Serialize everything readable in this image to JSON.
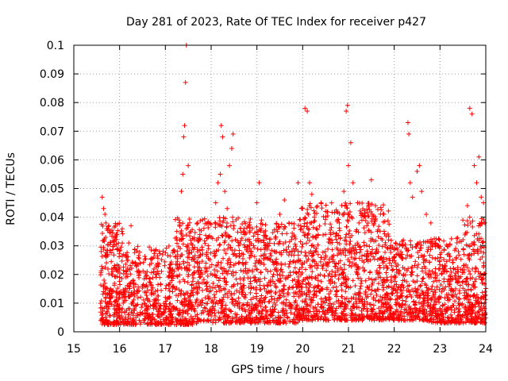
{
  "chart_data": {
    "type": "scatter",
    "title": "Day 281 of 2023, Rate Of TEC Index for receiver p427",
    "xlabel": "GPS time / hours",
    "ylabel": "ROTI / TECUs",
    "xlim": [
      15,
      24
    ],
    "ylim": [
      0,
      0.1
    ],
    "xticks": [
      "15",
      "16",
      "17",
      "18",
      "19",
      "20",
      "21",
      "22",
      "23",
      "24"
    ],
    "yticks": [
      "0",
      "0.01",
      "0.02",
      "0.03",
      "0.04",
      "0.05",
      "0.06",
      "0.07",
      "0.08",
      "0.09",
      "0.1"
    ],
    "grid": true,
    "marker": "plus",
    "color": "#ff0000",
    "series": [
      {
        "points": [
          [
            15.62,
            0.047
          ],
          [
            15.65,
            0.043
          ],
          [
            15.68,
            0.041
          ],
          [
            15.7,
            0.038
          ],
          [
            15.72,
            0.036
          ],
          [
            15.6,
            0.028
          ],
          [
            15.63,
            0.022
          ],
          [
            15.66,
            0.018
          ],
          [
            15.7,
            0.012
          ],
          [
            15.75,
            0.008
          ],
          [
            15.8,
            0.015
          ],
          [
            15.85,
            0.021
          ],
          [
            15.9,
            0.033
          ],
          [
            15.95,
            0.029
          ],
          [
            16.0,
            0.019
          ],
          [
            16.05,
            0.035
          ],
          [
            16.1,
            0.012
          ],
          [
            16.15,
            0.026
          ],
          [
            16.2,
            0.031
          ],
          [
            16.25,
            0.037
          ],
          [
            16.3,
            0.018
          ],
          [
            16.35,
            0.009
          ],
          [
            16.45,
            0.024
          ],
          [
            16.5,
            0.016
          ],
          [
            16.6,
            0.021
          ],
          [
            16.7,
            0.013
          ],
          [
            16.8,
            0.019
          ],
          [
            16.9,
            0.009
          ],
          [
            17.0,
            0.012
          ],
          [
            17.1,
            0.017
          ],
          [
            17.2,
            0.028
          ],
          [
            17.25,
            0.035
          ],
          [
            17.3,
            0.039
          ],
          [
            17.35,
            0.049
          ],
          [
            17.38,
            0.055
          ],
          [
            17.4,
            0.068
          ],
          [
            17.42,
            0.072
          ],
          [
            17.44,
            0.087
          ],
          [
            17.46,
            0.1
          ],
          [
            17.5,
            0.058
          ],
          [
            17.55,
            0.035
          ],
          [
            17.6,
            0.026
          ],
          [
            17.7,
            0.038
          ],
          [
            17.75,
            0.019
          ],
          [
            17.8,
            0.011
          ],
          [
            17.9,
            0.027
          ],
          [
            18.0,
            0.033
          ],
          [
            18.1,
            0.045
          ],
          [
            18.15,
            0.052
          ],
          [
            18.2,
            0.055
          ],
          [
            18.22,
            0.072
          ],
          [
            18.25,
            0.068
          ],
          [
            18.3,
            0.049
          ],
          [
            18.35,
            0.043
          ],
          [
            18.4,
            0.058
          ],
          [
            18.45,
            0.064
          ],
          [
            18.48,
            0.069
          ],
          [
            18.5,
            0.037
          ],
          [
            18.6,
            0.024
          ],
          [
            18.7,
            0.016
          ],
          [
            18.8,
            0.028
          ],
          [
            18.9,
            0.036
          ],
          [
            19.0,
            0.045
          ],
          [
            19.05,
            0.052
          ],
          [
            19.1,
            0.039
          ],
          [
            19.2,
            0.026
          ],
          [
            19.3,
            0.018
          ],
          [
            19.4,
            0.033
          ],
          [
            19.5,
            0.041
          ],
          [
            19.6,
            0.046
          ],
          [
            19.7,
            0.038
          ],
          [
            19.8,
            0.029
          ],
          [
            19.9,
            0.052
          ],
          [
            20.0,
            0.043
          ],
          [
            20.05,
            0.078
          ],
          [
            20.1,
            0.077
          ],
          [
            20.15,
            0.052
          ],
          [
            20.2,
            0.048
          ],
          [
            20.3,
            0.036
          ],
          [
            20.4,
            0.045
          ],
          [
            20.5,
            0.042
          ],
          [
            20.6,
            0.031
          ],
          [
            20.7,
            0.024
          ],
          [
            20.8,
            0.038
          ],
          [
            20.9,
            0.049
          ],
          [
            20.95,
            0.077
          ],
          [
            20.98,
            0.079
          ],
          [
            21.0,
            0.058
          ],
          [
            21.05,
            0.066
          ],
          [
            21.1,
            0.052
          ],
          [
            21.2,
            0.045
          ],
          [
            21.3,
            0.041
          ],
          [
            21.4,
            0.037
          ],
          [
            21.5,
            0.053
          ],
          [
            21.6,
            0.028
          ],
          [
            21.7,
            0.019
          ],
          [
            21.8,
            0.012
          ],
          [
            21.9,
            0.024
          ],
          [
            22.0,
            0.016
          ],
          [
            22.1,
            0.021
          ],
          [
            22.2,
            0.032
          ],
          [
            22.3,
            0.073
          ],
          [
            22.32,
            0.069
          ],
          [
            22.35,
            0.052
          ],
          [
            22.4,
            0.047
          ],
          [
            22.5,
            0.056
          ],
          [
            22.55,
            0.058
          ],
          [
            22.6,
            0.049
          ],
          [
            22.7,
            0.041
          ],
          [
            22.8,
            0.038
          ],
          [
            22.9,
            0.031
          ],
          [
            23.0,
            0.027
          ],
          [
            23.1,
            0.021
          ],
          [
            23.2,
            0.016
          ],
          [
            23.3,
            0.022
          ],
          [
            23.4,
            0.028
          ],
          [
            23.5,
            0.039
          ],
          [
            23.6,
            0.044
          ],
          [
            23.65,
            0.078
          ],
          [
            23.7,
            0.076
          ],
          [
            23.75,
            0.058
          ],
          [
            23.8,
            0.052
          ],
          [
            23.85,
            0.061
          ],
          [
            23.9,
            0.047
          ],
          [
            23.95,
            0.045
          ],
          [
            23.98,
            0.038
          ]
        ]
      }
    ],
    "density": [
      {
        "x0": 15.58,
        "x1": 16.1,
        "lo": 0.0025,
        "hi": 0.038,
        "n": 260
      },
      {
        "x0": 16.1,
        "x1": 17.2,
        "lo": 0.0025,
        "hi": 0.03,
        "n": 420
      },
      {
        "x0": 17.2,
        "x1": 17.6,
        "lo": 0.0025,
        "hi": 0.04,
        "n": 200
      },
      {
        "x0": 17.6,
        "x1": 18.9,
        "lo": 0.003,
        "hi": 0.04,
        "n": 520
      },
      {
        "x0": 18.9,
        "x1": 19.9,
        "lo": 0.003,
        "hi": 0.038,
        "n": 420
      },
      {
        "x0": 19.9,
        "x1": 20.9,
        "lo": 0.004,
        "hi": 0.045,
        "n": 460
      },
      {
        "x0": 20.9,
        "x1": 21.9,
        "lo": 0.004,
        "hi": 0.045,
        "n": 460
      },
      {
        "x0": 21.9,
        "x1": 22.7,
        "lo": 0.004,
        "hi": 0.032,
        "n": 320
      },
      {
        "x0": 22.7,
        "x1": 23.5,
        "lo": 0.003,
        "hi": 0.033,
        "n": 340
      },
      {
        "x0": 23.5,
        "x1": 24.0,
        "lo": 0.003,
        "hi": 0.04,
        "n": 260
      }
    ]
  }
}
